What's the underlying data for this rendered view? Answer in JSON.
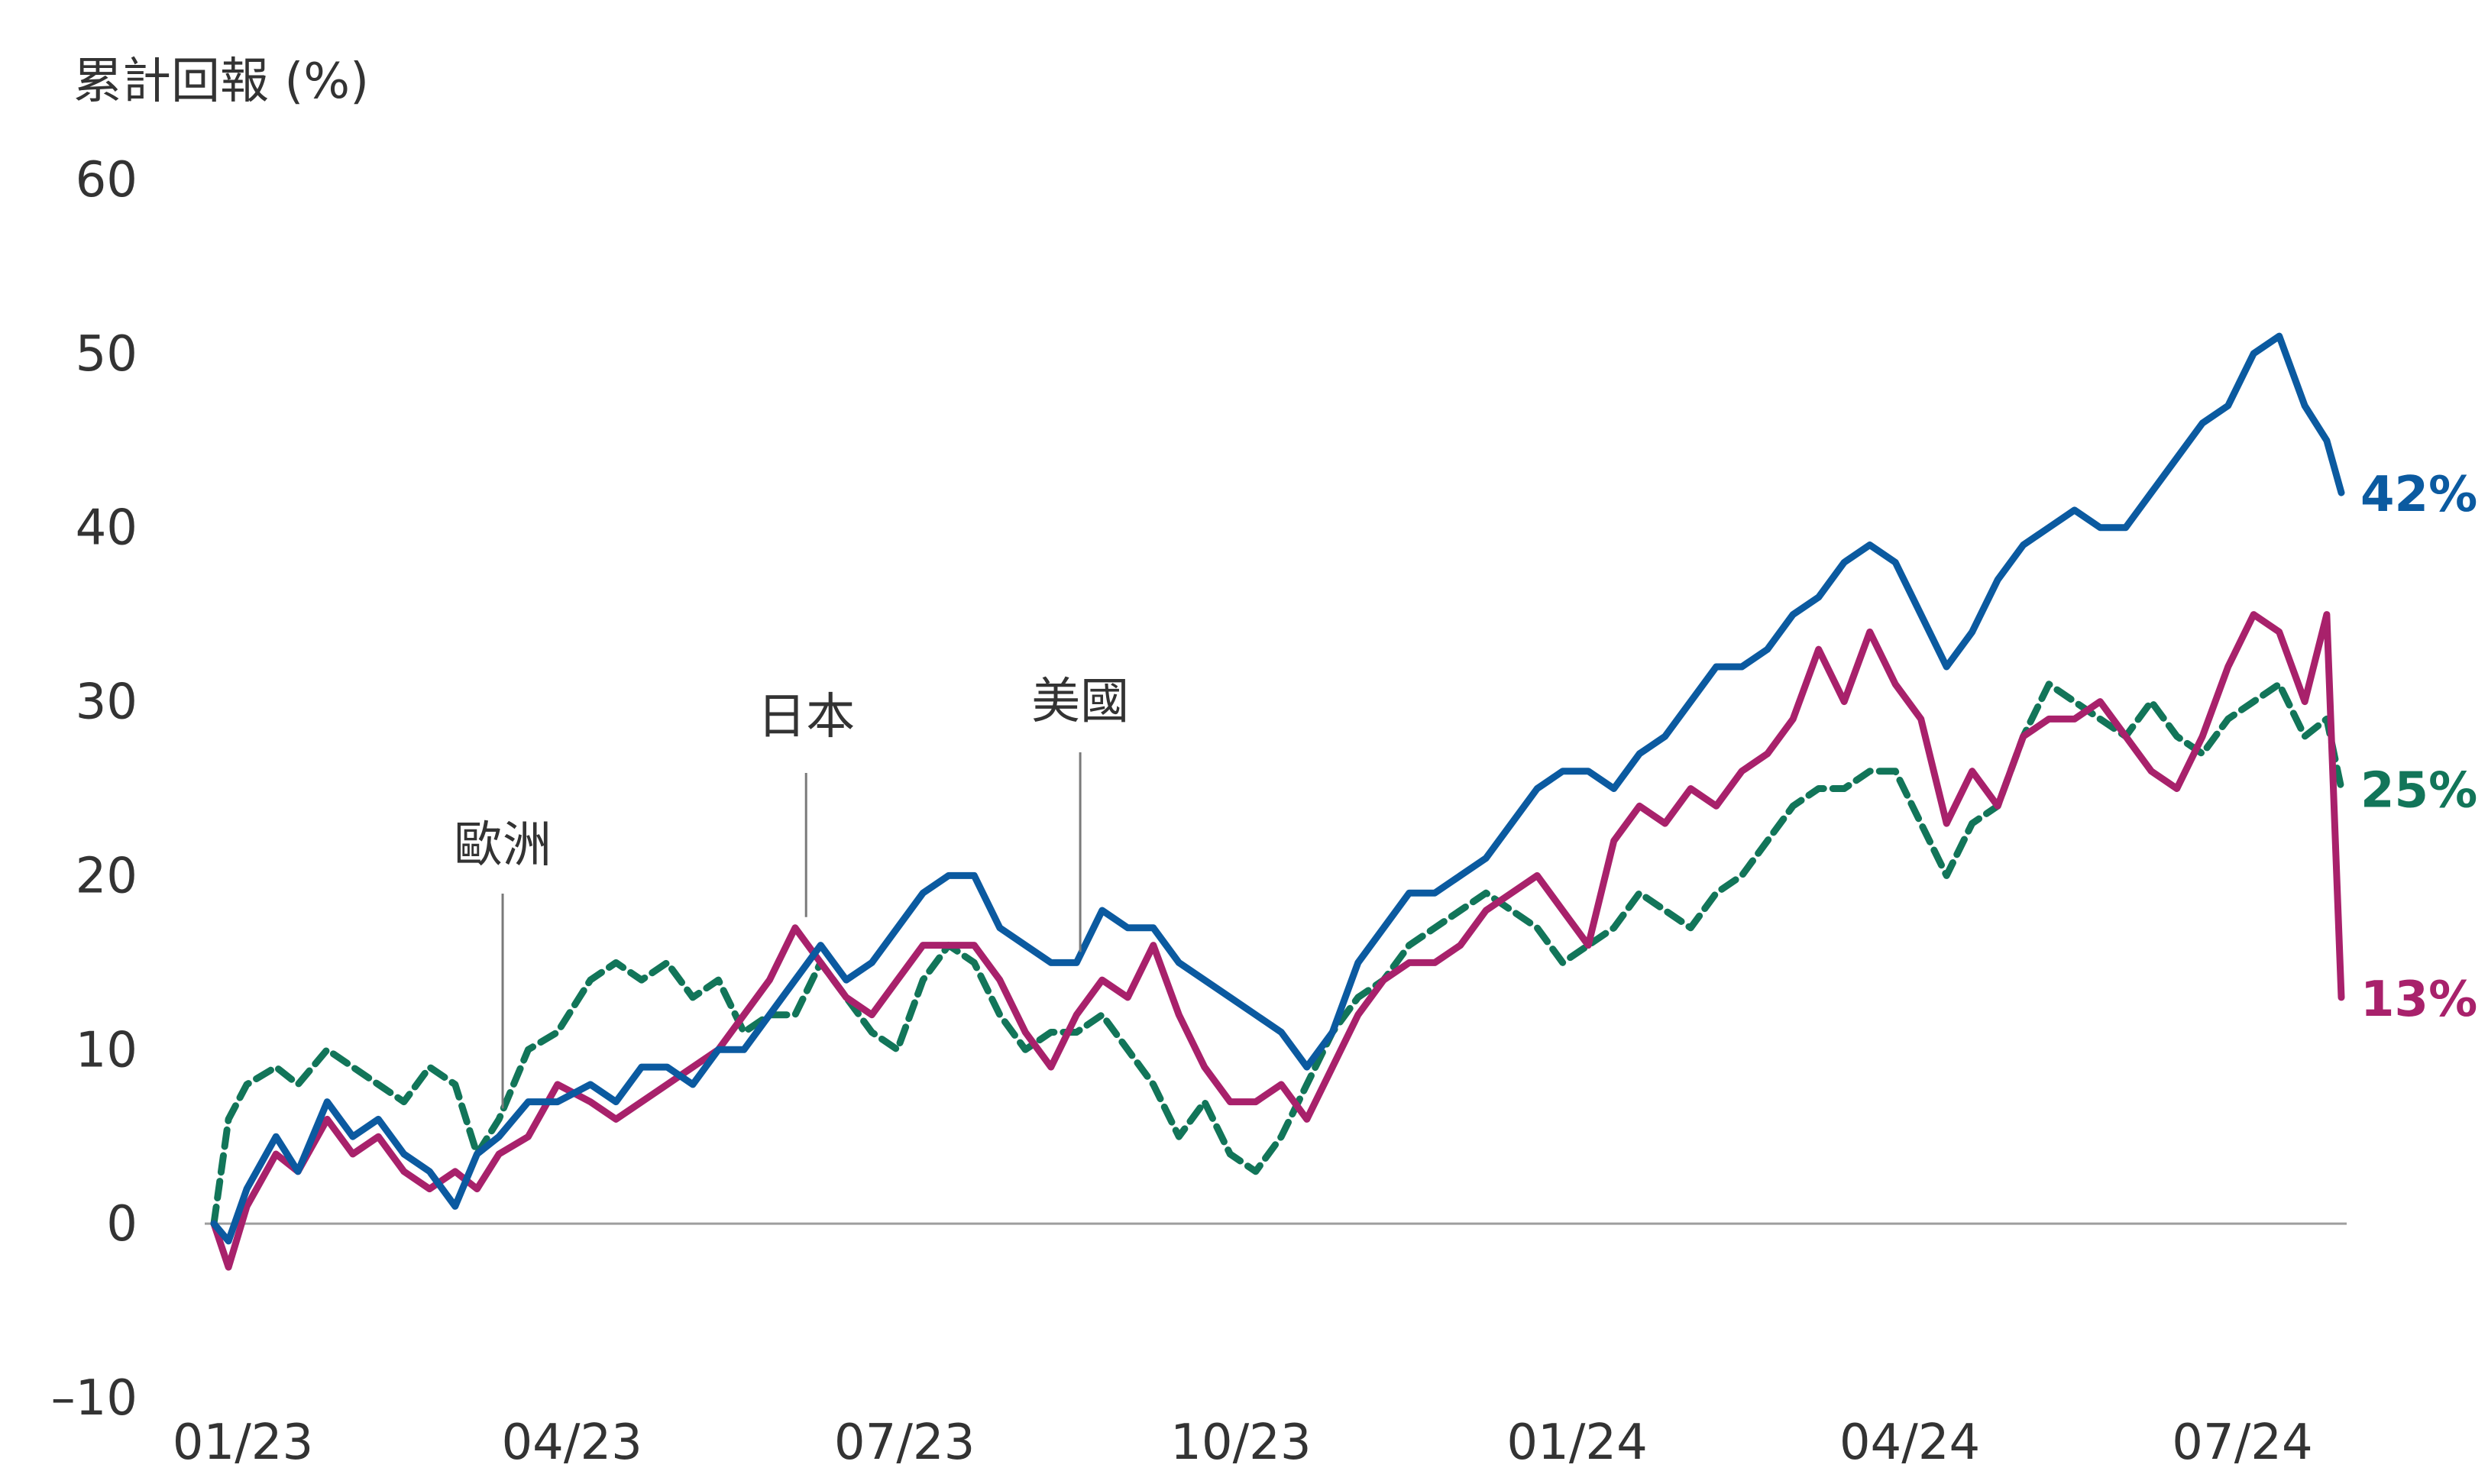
{
  "chart_data": {
    "type": "line",
    "ylabel": "累計回報 (%)",
    "ylim": [
      -10,
      60
    ],
    "y_ticks": [
      {
        "value": 60,
        "label": "60"
      },
      {
        "value": 50,
        "label": "50"
      },
      {
        "value": 40,
        "label": "40"
      },
      {
        "value": 30,
        "label": "30"
      },
      {
        "value": 20,
        "label": "20"
      },
      {
        "value": 10,
        "label": "10"
      },
      {
        "value": 0,
        "label": "0"
      },
      {
        "value": -10,
        "label": "–10"
      }
    ],
    "x_ticks": [
      "01/23",
      "04/23",
      "07/23",
      "10/23",
      "01/24",
      "04/24",
      "07/24"
    ],
    "x_tick_dates": [
      "2023-01-01",
      "2023-04-01",
      "2023-07-01",
      "2023-10-01",
      "2024-01-01",
      "2024-04-01",
      "2024-07-01"
    ],
    "grid": false,
    "legend": "none",
    "series": [
      {
        "name": "美國",
        "color": "#0b5aa0",
        "style": "solid",
        "end_label": "42%",
        "x": [
          "2023-01-01",
          "2023-01-05",
          "2023-01-10",
          "2023-01-18",
          "2023-01-24",
          "2023-02-01",
          "2023-02-08",
          "2023-02-15",
          "2023-02-22",
          "2023-03-01",
          "2023-03-08",
          "2023-03-14",
          "2023-03-20",
          "2023-03-28",
          "2023-04-05",
          "2023-04-14",
          "2023-04-21",
          "2023-04-28",
          "2023-05-05",
          "2023-05-12",
          "2023-05-19",
          "2023-05-26",
          "2023-06-02",
          "2023-06-09",
          "2023-06-16",
          "2023-06-23",
          "2023-06-30",
          "2023-07-07",
          "2023-07-14",
          "2023-07-21",
          "2023-07-28",
          "2023-08-04",
          "2023-08-11",
          "2023-08-18",
          "2023-08-25",
          "2023-09-01",
          "2023-09-08",
          "2023-09-15",
          "2023-09-22",
          "2023-09-29",
          "2023-10-06",
          "2023-10-13",
          "2023-10-20",
          "2023-10-27",
          "2023-11-03",
          "2023-11-10",
          "2023-11-17",
          "2023-11-24",
          "2023-12-01",
          "2023-12-08",
          "2023-12-15",
          "2023-12-22",
          "2023-12-29",
          "2024-01-05",
          "2024-01-12",
          "2024-01-19",
          "2024-01-26",
          "2024-02-02",
          "2024-02-09",
          "2024-02-16",
          "2024-02-23",
          "2024-03-01",
          "2024-03-08",
          "2024-03-15",
          "2024-03-22",
          "2024-03-29",
          "2024-04-05",
          "2024-04-12",
          "2024-04-19",
          "2024-04-26",
          "2024-05-03",
          "2024-05-10",
          "2024-05-17",
          "2024-05-24",
          "2024-05-31",
          "2024-06-07",
          "2024-06-14",
          "2024-06-21",
          "2024-06-28",
          "2024-07-05",
          "2024-07-12",
          "2024-07-19",
          "2024-07-26",
          "2024-08-01",
          "2024-08-05"
        ],
        "values": [
          0,
          -1,
          2,
          5,
          3,
          7,
          5,
          6,
          4,
          3,
          1,
          4,
          5,
          7,
          7,
          8,
          7,
          9,
          9,
          8,
          10,
          10,
          12,
          14,
          16,
          14,
          15,
          17,
          19,
          20,
          20,
          17,
          16,
          15,
          15,
          18,
          17,
          17,
          15,
          14,
          13,
          12,
          11,
          9,
          11,
          15,
          17,
          19,
          19,
          20,
          21,
          23,
          25,
          26,
          26,
          25,
          27,
          28,
          30,
          32,
          32,
          33,
          35,
          36,
          38,
          39,
          38,
          35,
          32,
          34,
          37,
          39,
          40,
          41,
          40,
          40,
          42,
          44,
          46,
          47,
          50,
          51,
          47,
          45,
          42
        ]
      },
      {
        "name": "日本",
        "color": "#a8216b",
        "style": "solid",
        "end_label": "13%",
        "x": [
          "2023-01-01",
          "2023-01-05",
          "2023-01-10",
          "2023-01-18",
          "2023-01-24",
          "2023-02-01",
          "2023-02-08",
          "2023-02-15",
          "2023-02-22",
          "2023-03-01",
          "2023-03-08",
          "2023-03-14",
          "2023-03-20",
          "2023-03-28",
          "2023-04-05",
          "2023-04-14",
          "2023-04-21",
          "2023-04-28",
          "2023-05-05",
          "2023-05-12",
          "2023-05-19",
          "2023-05-26",
          "2023-06-02",
          "2023-06-09",
          "2023-06-16",
          "2023-06-23",
          "2023-06-30",
          "2023-07-07",
          "2023-07-14",
          "2023-07-21",
          "2023-07-28",
          "2023-08-04",
          "2023-08-11",
          "2023-08-18",
          "2023-08-25",
          "2023-09-01",
          "2023-09-08",
          "2023-09-15",
          "2023-09-22",
          "2023-09-29",
          "2023-10-06",
          "2023-10-13",
          "2023-10-20",
          "2023-10-27",
          "2023-11-03",
          "2023-11-10",
          "2023-11-17",
          "2023-11-24",
          "2023-12-01",
          "2023-12-08",
          "2023-12-15",
          "2023-12-22",
          "2023-12-29",
          "2024-01-05",
          "2024-01-12",
          "2024-01-19",
          "2024-01-26",
          "2024-02-02",
          "2024-02-09",
          "2024-02-16",
          "2024-02-23",
          "2024-03-01",
          "2024-03-08",
          "2024-03-15",
          "2024-03-22",
          "2024-03-29",
          "2024-04-05",
          "2024-04-12",
          "2024-04-19",
          "2024-04-26",
          "2024-05-03",
          "2024-05-10",
          "2024-05-17",
          "2024-05-24",
          "2024-05-31",
          "2024-06-07",
          "2024-06-14",
          "2024-06-21",
          "2024-06-28",
          "2024-07-05",
          "2024-07-12",
          "2024-07-19",
          "2024-07-26",
          "2024-08-01",
          "2024-08-05"
        ],
        "values": [
          0,
          -2.5,
          1,
          4,
          3,
          6,
          4,
          5,
          3,
          2,
          3,
          2,
          4,
          5,
          8,
          7,
          6,
          7,
          8,
          9,
          10,
          12,
          14,
          17,
          15,
          13,
          12,
          14,
          16,
          16,
          16,
          14,
          11,
          9,
          12,
          14,
          13,
          16,
          12,
          9,
          7,
          7,
          8,
          6,
          9,
          12,
          14,
          15,
          15,
          16,
          18,
          19,
          20,
          18,
          16,
          22,
          24,
          23,
          25,
          24,
          26,
          27,
          29,
          33,
          30,
          34,
          31,
          29,
          23,
          26,
          24,
          28,
          29,
          29,
          30,
          28,
          26,
          25,
          28,
          32,
          35,
          34,
          30,
          35,
          13
        ]
      },
      {
        "name": "歐洲",
        "color": "#127559",
        "style": "dashed",
        "end_label": "25%",
        "x": [
          "2023-01-01",
          "2023-01-05",
          "2023-01-10",
          "2023-01-18",
          "2023-01-24",
          "2023-02-01",
          "2023-02-08",
          "2023-02-15",
          "2023-02-22",
          "2023-03-01",
          "2023-03-08",
          "2023-03-14",
          "2023-03-20",
          "2023-03-28",
          "2023-04-05",
          "2023-04-14",
          "2023-04-21",
          "2023-04-28",
          "2023-05-05",
          "2023-05-12",
          "2023-05-19",
          "2023-05-26",
          "2023-06-02",
          "2023-06-09",
          "2023-06-16",
          "2023-06-23",
          "2023-06-30",
          "2023-07-07",
          "2023-07-14",
          "2023-07-21",
          "2023-07-28",
          "2023-08-04",
          "2023-08-11",
          "2023-08-18",
          "2023-08-25",
          "2023-09-01",
          "2023-09-08",
          "2023-09-15",
          "2023-09-22",
          "2023-09-29",
          "2023-10-06",
          "2023-10-13",
          "2023-10-20",
          "2023-10-27",
          "2023-11-03",
          "2023-11-10",
          "2023-11-17",
          "2023-11-24",
          "2023-12-01",
          "2023-12-08",
          "2023-12-15",
          "2023-12-22",
          "2023-12-29",
          "2024-01-05",
          "2024-01-12",
          "2024-01-19",
          "2024-01-26",
          "2024-02-02",
          "2024-02-09",
          "2024-02-16",
          "2024-02-23",
          "2024-03-01",
          "2024-03-08",
          "2024-03-15",
          "2024-03-22",
          "2024-03-29",
          "2024-04-05",
          "2024-04-12",
          "2024-04-19",
          "2024-04-26",
          "2024-05-03",
          "2024-05-10",
          "2024-05-17",
          "2024-05-24",
          "2024-05-31",
          "2024-06-07",
          "2024-06-14",
          "2024-06-21",
          "2024-06-28",
          "2024-07-05",
          "2024-07-12",
          "2024-07-19",
          "2024-07-26",
          "2024-08-01",
          "2024-08-05"
        ],
        "values": [
          0,
          6,
          8,
          9,
          8,
          10,
          9,
          8,
          7,
          9,
          8,
          4,
          6,
          10,
          11,
          14,
          15,
          14,
          15,
          13,
          14,
          11,
          12,
          12,
          15,
          13,
          11,
          10,
          14,
          16,
          15,
          12,
          10,
          11,
          11,
          12,
          10,
          8,
          5,
          7,
          4,
          3,
          5,
          8,
          11,
          13,
          14,
          16,
          17,
          18,
          19,
          18,
          17,
          15,
          16,
          17,
          19,
          18,
          17,
          19,
          20,
          22,
          24,
          25,
          25,
          26,
          26,
          23,
          20,
          23,
          24,
          28,
          31,
          30,
          29,
          28,
          30,
          28,
          27,
          29,
          30,
          31,
          28,
          29,
          25
        ]
      }
    ],
    "annotations": [
      {
        "text": "歐洲",
        "series": "歐洲",
        "x": "2023-03-21"
      },
      {
        "text": "日本",
        "series": "日本",
        "x": "2023-06-12"
      },
      {
        "text": "美國",
        "series": "美國",
        "x": "2023-08-26"
      }
    ]
  }
}
